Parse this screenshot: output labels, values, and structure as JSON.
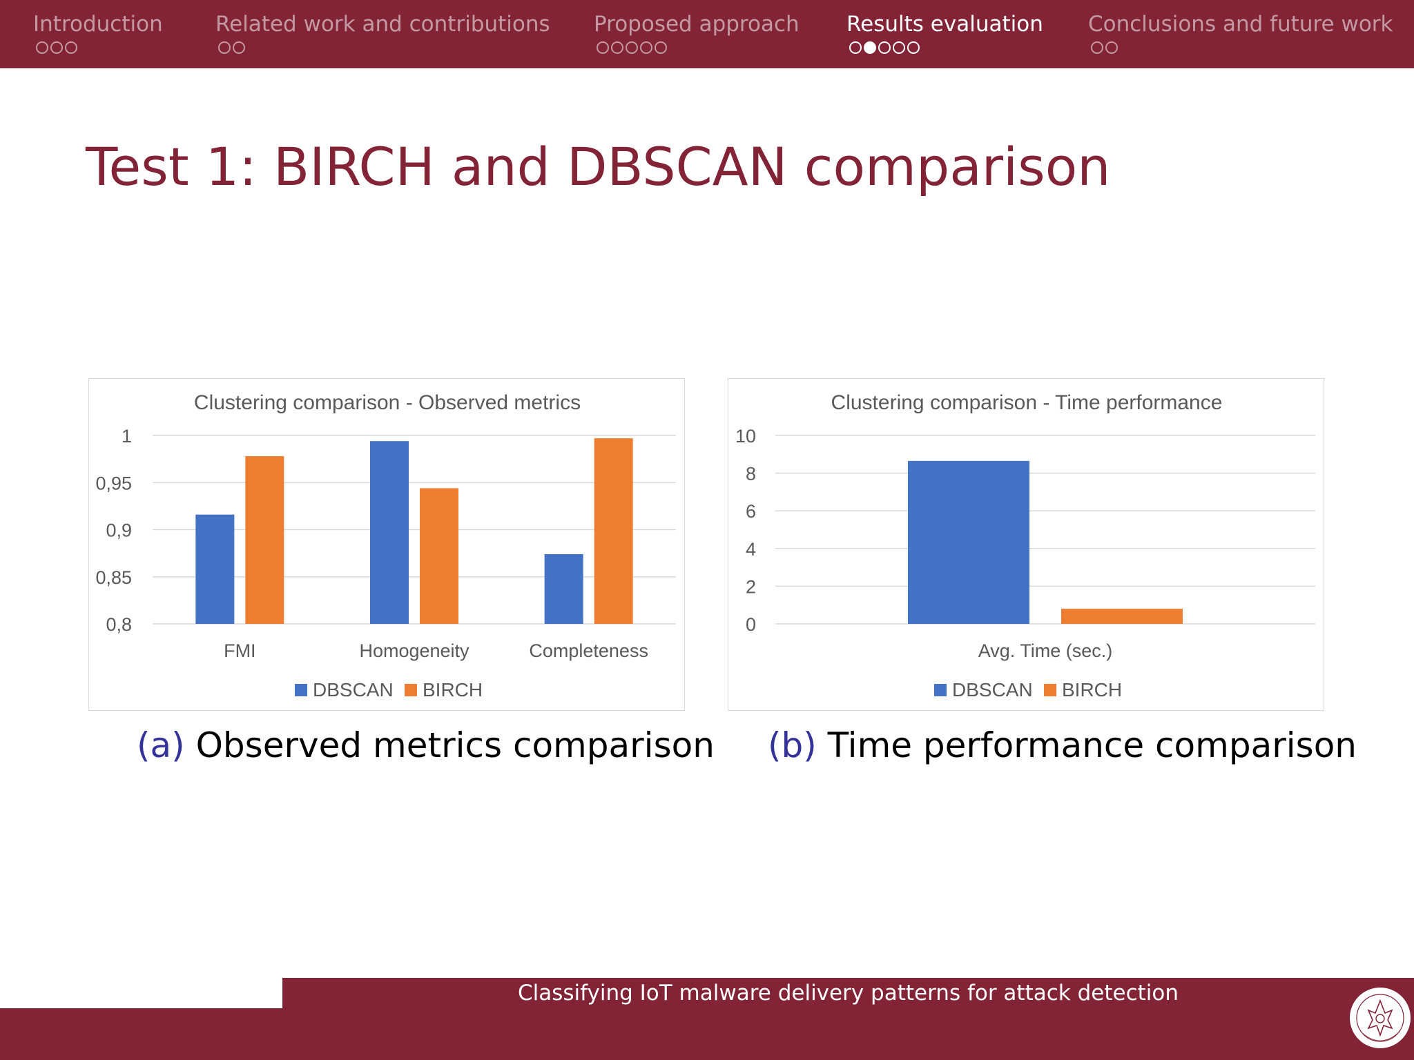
{
  "nav": {
    "sections": [
      {
        "title": "Introduction",
        "dots": 3,
        "active_dot": -1,
        "active": false
      },
      {
        "title": "Related work and contributions",
        "dots": 2,
        "active_dot": -1,
        "active": false
      },
      {
        "title": "Proposed approach",
        "dots": 5,
        "active_dot": -1,
        "active": false
      },
      {
        "title": "Results evaluation",
        "dots": 5,
        "active_dot": 1,
        "active": true
      },
      {
        "title": "Conclusions and future work",
        "dots": 2,
        "active_dot": -1,
        "active": false
      }
    ]
  },
  "slide": {
    "title": "Test 1: BIRCH and DBSCAN comparison"
  },
  "captions": {
    "a_tag": "(a)",
    "a_text": "Observed metrics comparison",
    "b_tag": "(b)",
    "b_text": "Time performance comparison"
  },
  "footer": {
    "title": "Classifying IoT malware delivery patterns for attack detection",
    "logo_text": "STVDIVM VRBIS"
  },
  "colors": {
    "brand": "#822336",
    "dbscan": "#4472c4",
    "birch": "#ed7d31",
    "caption_tag": "#33339a"
  },
  "chart_data": [
    {
      "type": "bar",
      "title": "Clustering comparison - Observed metrics",
      "categories": [
        "FMI",
        "Homogeneity",
        "Completeness"
      ],
      "series": [
        {
          "name": "DBSCAN",
          "values": [
            0.916,
            0.994,
            0.874
          ]
        },
        {
          "name": "BIRCH",
          "values": [
            0.978,
            0.944,
            0.997
          ]
        }
      ],
      "yticks": [
        "0,8",
        "0,85",
        "0,9",
        "0,95",
        "1"
      ],
      "ylim": [
        0.8,
        1.0
      ],
      "grid": true,
      "legend": "bottom"
    },
    {
      "type": "bar",
      "title": "Clustering comparison - Time performance",
      "categories": [
        "Avg. Time (sec.)"
      ],
      "series": [
        {
          "name": "DBSCAN",
          "values": [
            8.65
          ]
        },
        {
          "name": "BIRCH",
          "values": [
            0.8
          ]
        }
      ],
      "yticks": [
        "0",
        "2",
        "4",
        "6",
        "8",
        "10"
      ],
      "ylim": [
        0,
        10
      ],
      "grid": true,
      "legend": "bottom"
    }
  ]
}
